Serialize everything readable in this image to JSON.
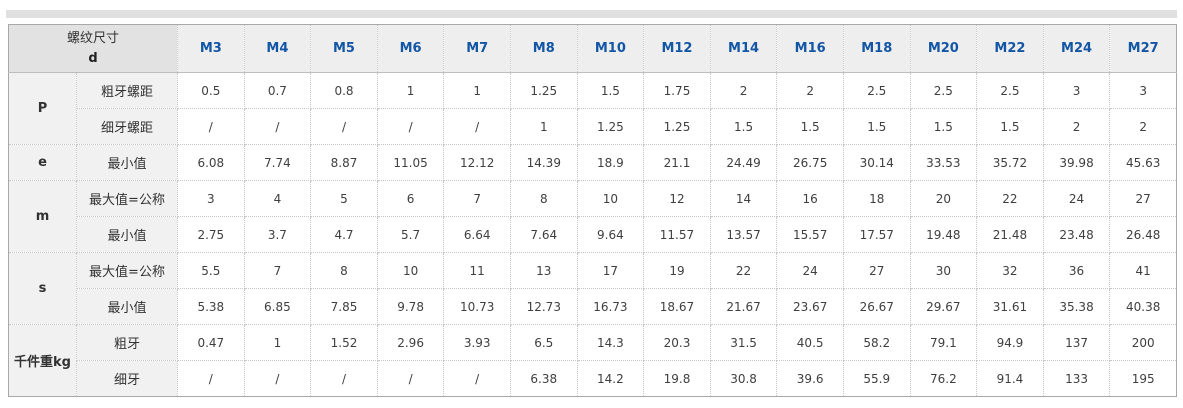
{
  "colors": {
    "accent_blue": "#1356a6",
    "header_bg": "#eeeeee",
    "corner_bg": "#e2e2e2",
    "label_bg": "#f1f1f1",
    "top_strip": "#e0e0e0",
    "border": "#c6c6c6"
  },
  "table": {
    "corner_title": "螺纹尺寸",
    "corner_subtitle": "d",
    "columns": [
      "M3",
      "M4",
      "M5",
      "M6",
      "M7",
      "M8",
      "M10",
      "M12",
      "M14",
      "M16",
      "M18",
      "M20",
      "M22",
      "M24",
      "M27"
    ],
    "row_groups": [
      {
        "label": "P",
        "rows": [
          {
            "label": "粗牙螺距",
            "values": [
              "0.5",
              "0.7",
              "0.8",
              "1",
              "1",
              "1.25",
              "1.5",
              "1.75",
              "2",
              "2",
              "2.5",
              "2.5",
              "2.5",
              "3",
              "3"
            ]
          },
          {
            "label": "细牙螺距",
            "values": [
              "/",
              "/",
              "/",
              "/",
              "/",
              "1",
              "1.25",
              "1.25",
              "1.5",
              "1.5",
              "1.5",
              "1.5",
              "1.5",
              "2",
              "2"
            ]
          }
        ]
      },
      {
        "label": "e",
        "rows": [
          {
            "label": "最小值",
            "values": [
              "6.08",
              "7.74",
              "8.87",
              "11.05",
              "12.12",
              "14.39",
              "18.9",
              "21.1",
              "24.49",
              "26.75",
              "30.14",
              "33.53",
              "35.72",
              "39.98",
              "45.63"
            ]
          }
        ]
      },
      {
        "label": "m",
        "rows": [
          {
            "label": "最大值=公称",
            "values": [
              "3",
              "4",
              "5",
              "6",
              "7",
              "8",
              "10",
              "12",
              "14",
              "16",
              "18",
              "20",
              "22",
              "24",
              "27"
            ]
          },
          {
            "label": "最小值",
            "values": [
              "2.75",
              "3.7",
              "4.7",
              "5.7",
              "6.64",
              "7.64",
              "9.64",
              "11.57",
              "13.57",
              "15.57",
              "17.57",
              "19.48",
              "21.48",
              "23.48",
              "26.48"
            ]
          }
        ]
      },
      {
        "label": "s",
        "rows": [
          {
            "label": "最大值=公称",
            "values": [
              "5.5",
              "7",
              "8",
              "10",
              "11",
              "13",
              "17",
              "19",
              "22",
              "24",
              "27",
              "30",
              "32",
              "36",
              "41"
            ]
          },
          {
            "label": "最小值",
            "values": [
              "5.38",
              "6.85",
              "7.85",
              "9.78",
              "10.73",
              "12.73",
              "16.73",
              "18.67",
              "21.67",
              "23.67",
              "26.67",
              "29.67",
              "31.61",
              "35.38",
              "40.38"
            ]
          }
        ]
      },
      {
        "label": "千件重kg",
        "rows": [
          {
            "label": "粗牙",
            "values": [
              "0.47",
              "1",
              "1.52",
              "2.96",
              "3.93",
              "6.5",
              "14.3",
              "20.3",
              "31.5",
              "40.5",
              "58.2",
              "79.1",
              "94.9",
              "137",
              "200"
            ]
          },
          {
            "label": "细牙",
            "values": [
              "/",
              "/",
              "/",
              "/",
              "/",
              "6.38",
              "14.2",
              "19.8",
              "30.8",
              "39.6",
              "55.9",
              "76.2",
              "91.4",
              "133",
              "195"
            ]
          }
        ]
      }
    ]
  }
}
